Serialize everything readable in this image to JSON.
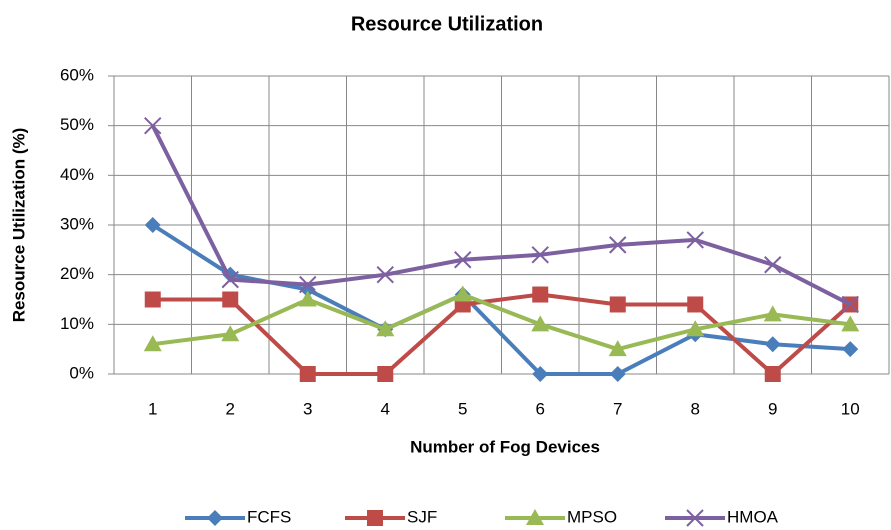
{
  "chart_data": {
    "type": "line",
    "title": "Resource Utilization",
    "x_label": "Number of Fog Devices",
    "y_label": "Resource Utilization  (%)",
    "categories": [
      "1",
      "2",
      "3",
      "4",
      "5",
      "6",
      "7",
      "8",
      "9",
      "10"
    ],
    "series": [
      {
        "name": "FCFS",
        "color": "#4a7ebb",
        "marker": "diamond",
        "values": [
          30,
          20,
          17,
          9,
          16,
          0,
          0,
          8,
          6,
          5
        ]
      },
      {
        "name": "SJF",
        "color": "#be4b48",
        "marker": "square",
        "values": [
          15,
          15,
          0,
          0,
          14,
          16,
          14,
          14,
          0,
          14
        ]
      },
      {
        "name": "MPSO",
        "color": "#98b954",
        "marker": "triangle",
        "values": [
          6,
          8,
          15,
          9,
          16,
          10,
          5,
          9,
          12,
          10
        ]
      },
      {
        "name": "HMOA",
        "color": "#7d60a0",
        "marker": "x",
        "values": [
          50,
          19,
          18,
          20,
          23,
          24,
          26,
          27,
          22,
          14
        ]
      }
    ],
    "ylim": [
      0,
      60
    ],
    "yticks": [
      {
        "value": 0,
        "label": "0%"
      },
      {
        "value": 10,
        "label": "10%"
      },
      {
        "value": 20,
        "label": "20%"
      },
      {
        "value": 30,
        "label": "30%"
      },
      {
        "value": 40,
        "label": "40%"
      },
      {
        "value": 50,
        "label": "50%"
      },
      {
        "value": 60,
        "label": "60%"
      }
    ],
    "grid": true,
    "legend": "bottom"
  }
}
